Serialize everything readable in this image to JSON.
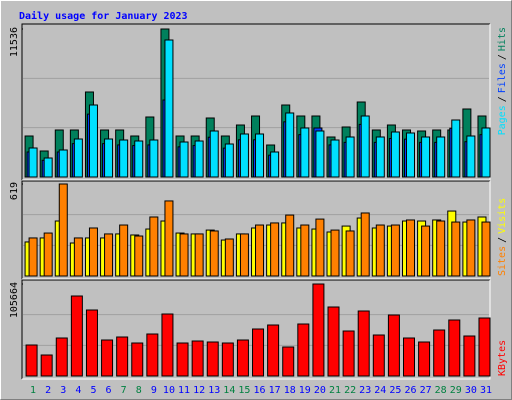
{
  "chart_data": {
    "type": "bar",
    "title": "Daily usage for January 2023",
    "categories": [
      "1",
      "2",
      "3",
      "4",
      "5",
      "6",
      "7",
      "8",
      "9",
      "10",
      "11",
      "12",
      "13",
      "14",
      "15",
      "16",
      "17",
      "18",
      "19",
      "20",
      "21",
      "22",
      "23",
      "24",
      "25",
      "26",
      "27",
      "28",
      "29",
      "30",
      "31"
    ],
    "category_colors": [
      "#008040",
      "#0000ff",
      "#0000ff",
      "#0000ff",
      "#0000ff",
      "#0000ff",
      "#008040",
      "#008040",
      "#0000ff",
      "#0000ff",
      "#0000ff",
      "#0000ff",
      "#0000ff",
      "#008040",
      "#008040",
      "#0000ff",
      "#0000ff",
      "#0000ff",
      "#0000ff",
      "#0000ff",
      "#008040",
      "#008040",
      "#0000ff",
      "#0000ff",
      "#0000ff",
      "#0000ff",
      "#0000ff",
      "#008040",
      "#008040",
      "#0000ff",
      "#0000ff"
    ],
    "legend_separator": "/",
    "grid_divisions": 3,
    "panels": [
      {
        "ylim": [
          0,
          11536
        ],
        "yticks": [
          11536
        ],
        "series": [
          {
            "name": "Hits",
            "color": "#00805c",
            "values": [
              3196,
              2027,
              3664,
              3664,
              6626,
              3664,
              3664,
              3196,
              4677,
              11536,
              3196,
              3196,
              4599,
              3196,
              4053,
              4755,
              2494,
              5612,
              4755,
              4755,
              3118,
              3898,
              5846,
              3664,
              4053,
              3664,
              3586,
              3664,
              3664,
              5301,
              4755
            ]
          },
          {
            "name": "Files",
            "color": "#0040ff",
            "values": [
              1950,
              1300,
              1950,
              2600,
              4900,
              2600,
              2500,
              2450,
              2500,
              6002,
              2350,
              2450,
              3100,
              2250,
              2900,
              2900,
              1700,
              4300,
              3300,
              3820,
              2500,
              2700,
              4100,
              2700,
              3000,
              2950,
              2700,
              2700,
              3800,
              2750,
              3300
            ]
          },
          {
            "name": "Pages",
            "color": "#00e0ff",
            "values": [
              2261,
              1481,
              2105,
              2962,
              5612,
              2962,
              2884,
              2806,
              2884,
              10679,
              2728,
              2806,
              3586,
              2572,
              3352,
              3352,
              1949,
              4989,
              3820,
              3586,
              2884,
              3118,
              4755,
              3118,
              3508,
              3430,
              3118,
              3118,
              4443,
              3196,
              3820
            ]
          }
        ]
      },
      {
        "ylim": [
          0,
          619
        ],
        "yticks": [
          619
        ],
        "series": [
          {
            "name": "Visits",
            "color": "#ffff00",
            "values": [
              229,
              256,
              370,
              222,
              256,
              256,
              283,
              276,
              316,
              370,
              289,
              283,
              309,
              242,
              283,
              323,
              343,
              357,
              323,
              316,
              296,
              336,
              390,
              323,
              336,
              370,
              370,
              377,
              437,
              363,
              397
            ]
          },
          {
            "name": "Sites",
            "color": "#ff8000",
            "values": [
              256,
              289,
              619,
              256,
              323,
              283,
              343,
              269,
              397,
              505,
              283,
              283,
              303,
              249,
              283,
              343,
              357,
              410,
              343,
              383,
              309,
              303,
              424,
              343,
              343,
              377,
              336,
              370,
              363,
              377,
              363
            ]
          }
        ]
      },
      {
        "ylim": [
          0,
          105664
        ],
        "yticks": [
          105664
        ],
        "series": [
          {
            "name": "KBytes",
            "color": "#ff0000",
            "values": [
              35604,
              24119,
              43643,
              91880,
              75801,
              41346,
              44792,
              37901,
              48237,
              71207,
              37901,
              40198,
              39049,
              37901,
              41346,
              53980,
              58574,
              33307,
              59722,
              105664,
              79247,
              51683,
              74653,
              47089,
              70059,
              43643,
              39049,
              52831,
              64316,
              45940,
              66613
            ]
          }
        ]
      }
    ]
  }
}
